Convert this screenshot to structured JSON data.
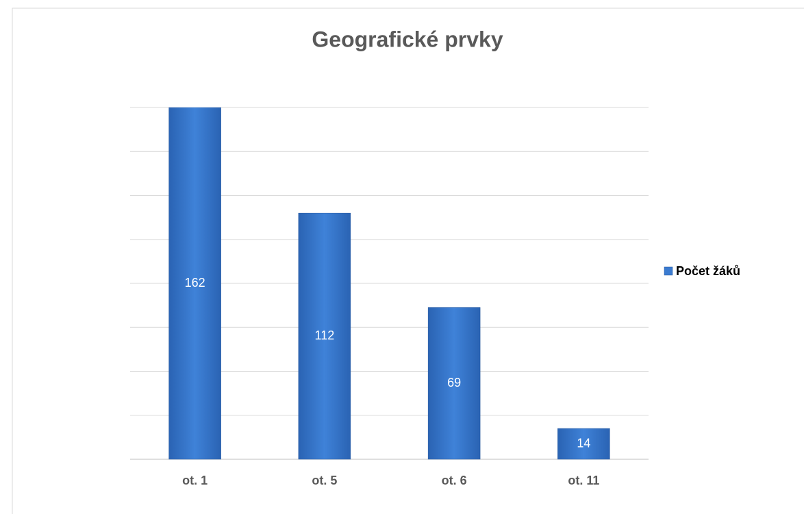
{
  "chart_data": {
    "type": "bar",
    "title": "Geografické prvky",
    "categories": [
      "ot. 1",
      "ot. 5",
      "ot. 6",
      "ot. 11"
    ],
    "series": [
      {
        "name": "Počet žáků",
        "color": "#3b7bd0",
        "values": [
          162,
          112,
          69,
          14
        ]
      }
    ],
    "ylim": [
      0,
      160
    ],
    "yticks": [
      0,
      20,
      40,
      60,
      80,
      100,
      120,
      140,
      160
    ],
    "grid": true,
    "legend": "right"
  }
}
